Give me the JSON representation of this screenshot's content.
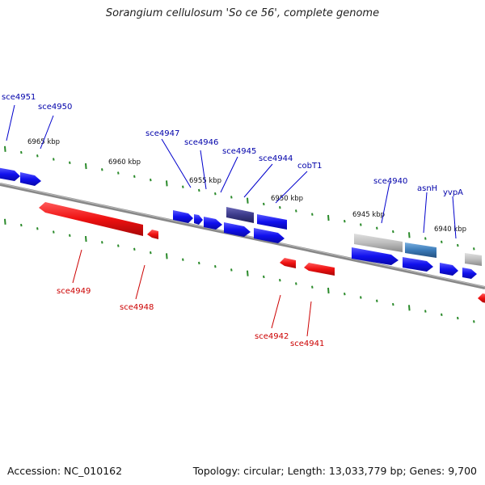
{
  "title": "Sorangium cellulosum 'So ce 56', complete genome",
  "accession": "Accession: NC_010162",
  "summary": "Topology: circular; Length: 13,033,779 bp; Genes: 9,700",
  "colors": {
    "forward_gene": "#1010ee",
    "reverse_gene": "#ee1010",
    "forward_label": "#0000aa",
    "reverse_label": "#cc0000",
    "backbone": "#888888",
    "tick": "#2a8a2a",
    "highlight_dark": "#3b3a8a",
    "highlight_light": "#3a7ab8",
    "grey_gene": "#b8b8b8"
  },
  "kbp_labels": [
    "6965 kbp",
    "6960 kbp",
    "6955 kbp",
    "6950 kbp",
    "6945 kbp",
    "6940 kbp"
  ],
  "forward_labels": [
    "sce4951",
    "sce4950",
    "sce4947",
    "sce4946",
    "sce4945",
    "sce4944",
    "cobT1",
    "sce4940",
    "asnH",
    "yvpA"
  ],
  "reverse_labels": [
    "sce4949",
    "sce4948",
    "sce4942",
    "sce4941"
  ]
}
